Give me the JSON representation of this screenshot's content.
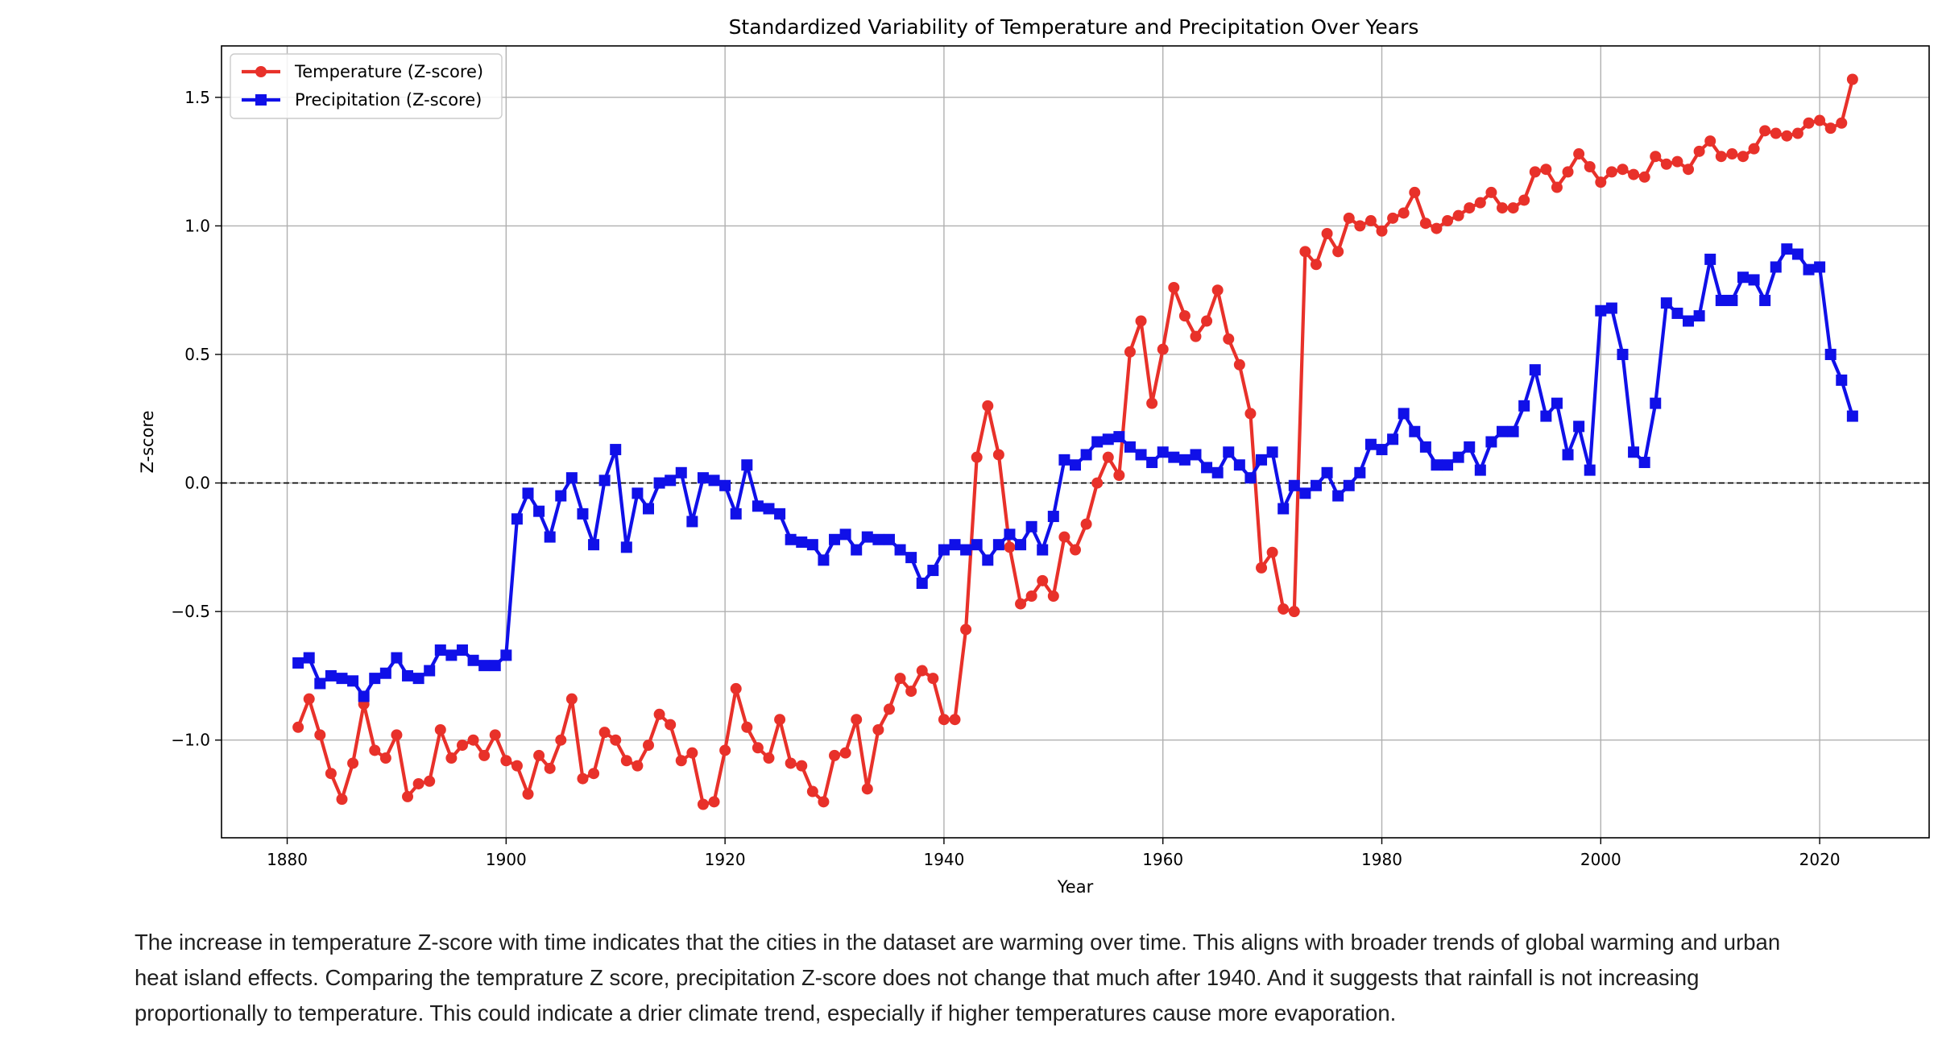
{
  "chart_data": {
    "type": "line",
    "title": "Standardized Variability of Temperature and Precipitation Over Years",
    "xlabel": "Year",
    "ylabel": "Z-score",
    "xlim": [
      1874,
      2030
    ],
    "ylim": [
      -1.38,
      1.7
    ],
    "xticks": [
      1880,
      1900,
      1920,
      1940,
      1960,
      1980,
      2000,
      2020
    ],
    "yticks": [
      -1.0,
      -0.5,
      0.0,
      0.5,
      1.0,
      1.5
    ],
    "ytick_labels": [
      "−1.0",
      "−0.5",
      "0.0",
      "0.5",
      "1.0",
      "1.5"
    ],
    "grid": true,
    "reference_line": 0,
    "legend_position": "top-left",
    "x": [
      1881,
      1882,
      1883,
      1884,
      1885,
      1886,
      1887,
      1888,
      1889,
      1890,
      1891,
      1892,
      1893,
      1894,
      1895,
      1896,
      1897,
      1898,
      1899,
      1900,
      1901,
      1902,
      1903,
      1904,
      1905,
      1906,
      1907,
      1908,
      1909,
      1910,
      1911,
      1912,
      1913,
      1914,
      1915,
      1916,
      1917,
      1918,
      1919,
      1920,
      1921,
      1922,
      1923,
      1924,
      1925,
      1926,
      1927,
      1928,
      1929,
      1930,
      1931,
      1932,
      1933,
      1934,
      1935,
      1936,
      1937,
      1938,
      1939,
      1940,
      1941,
      1942,
      1943,
      1944,
      1945,
      1946,
      1947,
      1948,
      1949,
      1950,
      1951,
      1952,
      1953,
      1954,
      1955,
      1956,
      1957,
      1958,
      1959,
      1960,
      1961,
      1962,
      1963,
      1964,
      1965,
      1966,
      1967,
      1968,
      1969,
      1970,
      1971,
      1972,
      1973,
      1974,
      1975,
      1976,
      1977,
      1978,
      1979,
      1980,
      1981,
      1982,
      1983,
      1984,
      1985,
      1986,
      1987,
      1988,
      1989,
      1990,
      1991,
      1992,
      1993,
      1994,
      1995,
      1996,
      1997,
      1998,
      1999,
      2000,
      2001,
      2002,
      2003,
      2004,
      2005,
      2006,
      2007,
      2008,
      2009,
      2010,
      2011,
      2012,
      2013,
      2014,
      2015,
      2016,
      2017,
      2018,
      2019,
      2020,
      2021,
      2022,
      2023
    ],
    "series": [
      {
        "name": "Temperature (Z-score)",
        "color": "#e8312a",
        "marker": "circle",
        "values": [
          -0.95,
          -0.84,
          -0.98,
          -1.13,
          -1.23,
          -1.09,
          -0.86,
          -1.04,
          -1.07,
          -0.98,
          -1.22,
          -1.17,
          -1.16,
          -0.96,
          -1.07,
          -1.02,
          -1.0,
          -1.06,
          -0.98,
          -1.08,
          -1.1,
          -1.21,
          -1.06,
          -1.11,
          -1.0,
          -0.84,
          -1.15,
          -1.13,
          -0.97,
          -1.0,
          -1.08,
          -1.1,
          -1.02,
          -0.9,
          -0.94,
          -1.08,
          -1.05,
          -1.25,
          -1.24,
          -1.04,
          -0.8,
          -0.95,
          -1.03,
          -1.07,
          -0.92,
          -1.09,
          -1.1,
          -1.2,
          -1.24,
          -1.06,
          -1.05,
          -0.92,
          -1.19,
          -0.96,
          -0.88,
          -0.76,
          -0.81,
          -0.73,
          -0.76,
          -0.92,
          -0.92,
          -0.57,
          0.1,
          0.3,
          0.11,
          -0.25,
          -0.47,
          -0.44,
          -0.38,
          -0.44,
          -0.21,
          -0.26,
          -0.16,
          0.0,
          0.1,
          0.03,
          0.51,
          0.63,
          0.31,
          0.52,
          0.76,
          0.65,
          0.57,
          0.63,
          0.75,
          0.56,
          0.46,
          0.27,
          -0.33,
          -0.27,
          -0.49,
          -0.5,
          0.9,
          0.85,
          0.97,
          0.9,
          1.03,
          1.0,
          1.02,
          0.98,
          1.03,
          1.05,
          1.13,
          1.01,
          0.99,
          1.02,
          1.04,
          1.07,
          1.09,
          1.13,
          1.07,
          1.07,
          1.1,
          1.21,
          1.22,
          1.15,
          1.21,
          1.28,
          1.23,
          1.17,
          1.21,
          1.22,
          1.2,
          1.19,
          1.27,
          1.24,
          1.25,
          1.22,
          1.29,
          1.33,
          1.27,
          1.28,
          1.27,
          1.3,
          1.37,
          1.36,
          1.35,
          1.36,
          1.4,
          1.41,
          1.38,
          1.4,
          1.57
        ]
      },
      {
        "name": "Precipitation (Z-score)",
        "color": "#1010e8",
        "marker": "square",
        "values": [
          -0.7,
          -0.68,
          -0.78,
          -0.75,
          -0.76,
          -0.77,
          -0.83,
          -0.76,
          -0.74,
          -0.68,
          -0.75,
          -0.76,
          -0.73,
          -0.65,
          -0.67,
          -0.65,
          -0.69,
          -0.71,
          -0.71,
          -0.67,
          -0.14,
          -0.04,
          -0.11,
          -0.21,
          -0.05,
          0.02,
          -0.12,
          -0.24,
          0.01,
          0.13,
          -0.25,
          -0.04,
          -0.1,
          0.0,
          0.01,
          0.04,
          -0.15,
          0.02,
          0.01,
          -0.01,
          -0.12,
          0.07,
          -0.09,
          -0.1,
          -0.12,
          -0.22,
          -0.23,
          -0.24,
          -0.3,
          -0.22,
          -0.2,
          -0.26,
          -0.21,
          -0.22,
          -0.22,
          -0.26,
          -0.29,
          -0.39,
          -0.34,
          -0.26,
          -0.24,
          -0.26,
          -0.24,
          -0.3,
          -0.24,
          -0.2,
          -0.24,
          -0.17,
          -0.26,
          -0.13,
          0.09,
          0.07,
          0.11,
          0.16,
          0.17,
          0.18,
          0.14,
          0.11,
          0.08,
          0.12,
          0.1,
          0.09,
          0.11,
          0.06,
          0.04,
          0.12,
          0.07,
          0.02,
          0.09,
          0.12,
          -0.1,
          -0.01,
          -0.04,
          -0.01,
          0.04,
          -0.05,
          -0.01,
          0.04,
          0.15,
          0.13,
          0.17,
          0.27,
          0.2,
          0.14,
          0.07,
          0.07,
          0.1,
          0.14,
          0.05,
          0.16,
          0.2,
          0.2,
          0.3,
          0.44,
          0.26,
          0.31,
          0.11,
          0.22,
          0.05,
          0.67,
          0.68,
          0.5,
          0.12,
          0.08,
          0.31,
          0.7,
          0.66,
          0.63,
          0.65,
          0.87,
          0.71,
          0.71,
          0.8,
          0.79,
          0.71,
          0.84,
          0.91,
          0.89,
          0.83,
          0.84,
          0.5,
          0.4,
          0.26
        ]
      }
    ]
  },
  "caption": {
    "line1": "The increase in temperature Z-score with time indicates that the cities in the dataset are warming over time. This aligns with broader trends of global warming and urban",
    "line2": "heat island effects. Comparing the temprature Z score, precipitation Z-score does not change that much after 1940. And it suggests that rainfall is not increasing",
    "line3": "proportionally to temperature. This could indicate a drier climate trend, especially if higher temperatures cause more evaporation."
  }
}
